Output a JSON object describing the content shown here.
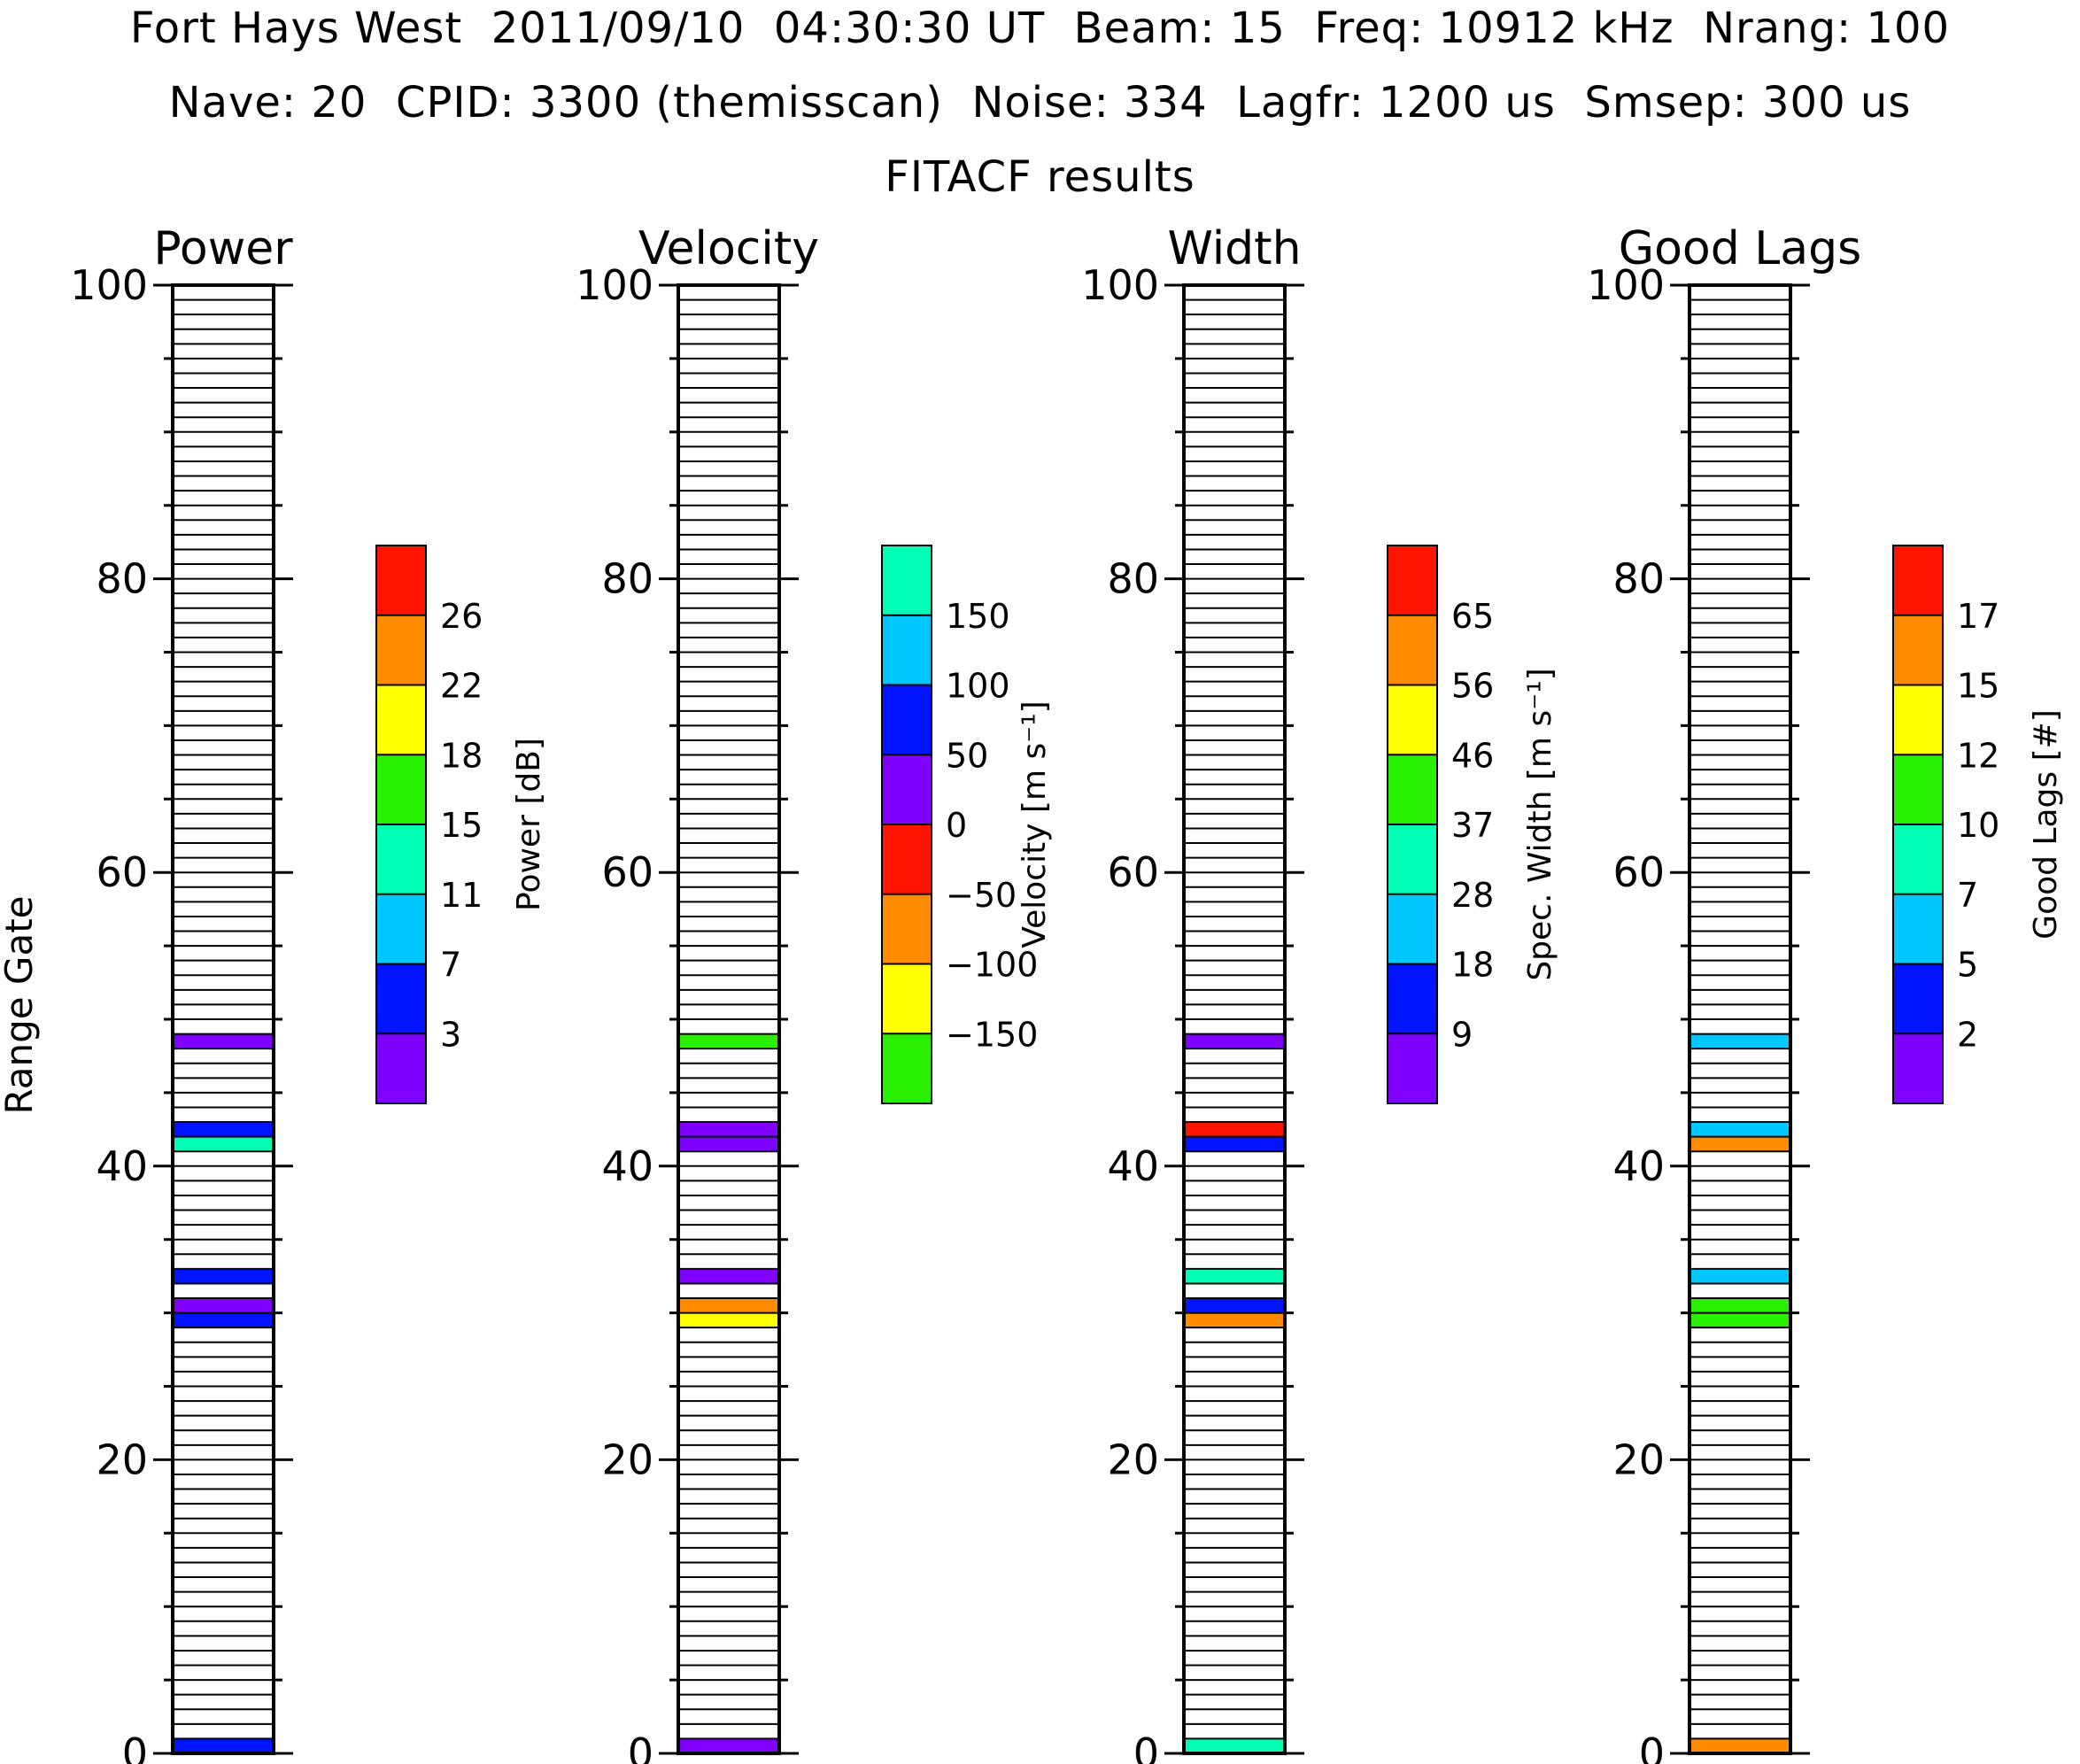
{
  "header": {
    "line1": "Fort Hays West  2011/09/10  04:30:30 UT  Beam: 15  Freq: 10912 kHz  Nrang: 100",
    "line2": "Nave: 20  CPID: 3300 (themisscan)  Noise: 334  Lagfr: 1200 us  Smsep: 300 us",
    "line3": "FITACF results"
  },
  "ylabel": "Range Gate",
  "chart_data": [
    {
      "type": "bar",
      "title": "Power",
      "ylabel": "Range Gate",
      "ylim": [
        0,
        100
      ],
      "yticks": [
        "0",
        "20",
        "40",
        "60",
        "80",
        "100"
      ],
      "ranges": [
        0,
        29,
        30,
        32,
        41,
        42,
        48
      ],
      "color_index": [
        1,
        1,
        0,
        1,
        3,
        1,
        0
      ],
      "colorbar": {
        "label": "Power [dB]",
        "tick_labels": [
          "3",
          "7",
          "11",
          "15",
          "18",
          "22",
          "26"
        ],
        "colors": [
          "#8000ff",
          "#0014ff",
          "#00c8ff",
          "#00ffb4",
          "#28f000",
          "#ffff00",
          "#ff8c00",
          "#ff1400"
        ]
      }
    },
    {
      "type": "bar",
      "title": "Velocity",
      "ylabel": "",
      "ylim": [
        0,
        100
      ],
      "yticks": [
        "0",
        "20",
        "40",
        "60",
        "80",
        "100"
      ],
      "ranges": [
        0,
        29,
        30,
        32,
        41,
        42,
        48
      ],
      "color_index": [
        4,
        1,
        2,
        4,
        4,
        4,
        0
      ],
      "colorbar": {
        "label": "Velocity [m s⁻¹]",
        "tick_labels": [
          "−150",
          "−100",
          "−50",
          "0",
          "50",
          "100",
          "150"
        ],
        "colors": [
          "#28f000",
          "#ffff00",
          "#ff8c00",
          "#ff1400",
          "#8000ff",
          "#0014ff",
          "#00c8ff",
          "#00ffb4"
        ]
      }
    },
    {
      "type": "bar",
      "title": "Width",
      "ylabel": "",
      "ylim": [
        0,
        100
      ],
      "yticks": [
        "0",
        "20",
        "40",
        "60",
        "80",
        "100"
      ],
      "ranges": [
        0,
        29,
        30,
        32,
        41,
        42,
        48
      ],
      "color_index": [
        3,
        6,
        1,
        3,
        1,
        7,
        0
      ],
      "colorbar": {
        "label": "Spec. Width [m s⁻¹]",
        "tick_labels": [
          "9",
          "18",
          "28",
          "37",
          "46",
          "56",
          "65"
        ],
        "colors": [
          "#8000ff",
          "#0014ff",
          "#00c8ff",
          "#00ffb4",
          "#28f000",
          "#ffff00",
          "#ff8c00",
          "#ff1400"
        ]
      }
    },
    {
      "type": "bar",
      "title": "Good Lags",
      "ylabel": "",
      "ylim": [
        0,
        100
      ],
      "yticks": [
        "0",
        "20",
        "40",
        "60",
        "80",
        "100"
      ],
      "ranges": [
        0,
        29,
        30,
        32,
        41,
        42,
        48
      ],
      "color_index": [
        6,
        4,
        4,
        2,
        6,
        2,
        2
      ],
      "colorbar": {
        "label": "Good Lags [#]",
        "tick_labels": [
          "2",
          "5",
          "7",
          "10",
          "12",
          "15",
          "17"
        ],
        "colors": [
          "#8000ff",
          "#0014ff",
          "#00c8ff",
          "#00ffb4",
          "#28f000",
          "#ffff00",
          "#ff8c00",
          "#ff1400"
        ]
      }
    }
  ]
}
